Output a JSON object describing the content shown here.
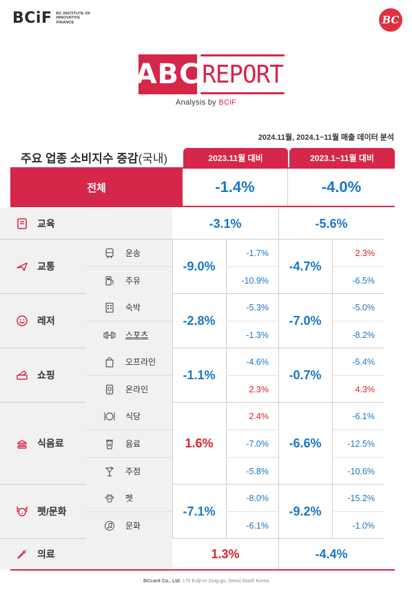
{
  "header": {
    "brand": "BCiF",
    "brand_lines": [
      "BC INSTITUTE OF",
      "INNOVATIVE",
      "FINANCE"
    ],
    "badge": "BC",
    "report_abc": "ABC",
    "report_word": "REPORT",
    "analysis_prefix": "Analysis by ",
    "analysis_brand": "BCiF"
  },
  "period": "2024.11월, 2024.1~11월 매출 데이터 분석",
  "table_title": "주요 업종 소비지수 증감",
  "table_title_suffix": "(국내)",
  "columns": [
    "2023.11월 대비",
    "2023.1~11월 대비"
  ],
  "total": {
    "label": "전체",
    "nov": "-1.4%",
    "ytd": "-4.0%"
  },
  "rows": {
    "education": {
      "label": "교육",
      "icon": "book-icon",
      "nov": "-3.1%",
      "ytd": "-5.6%"
    },
    "transport": {
      "label": "교통",
      "icon": "airplane-icon",
      "nov": "-9.0%",
      "ytd": "-4.7%",
      "subs": [
        {
          "label": "운송",
          "icon": "bus-icon",
          "nov": "-1.7%",
          "ytd": "2.3%"
        },
        {
          "label": "주유",
          "icon": "fuel-icon",
          "nov": "-10.9%",
          "ytd": "-6.5%"
        }
      ]
    },
    "leisure": {
      "label": "레저",
      "icon": "smile-icon",
      "nov": "-2.8%",
      "ytd": "-7.0%",
      "subs": [
        {
          "label": "숙박",
          "icon": "hotel-icon",
          "nov": "-5.3%",
          "ytd": "-5.0%"
        },
        {
          "label": "스포츠",
          "icon": "dumbbell-icon",
          "nov": "-1.3%",
          "ytd": "-8.2%"
        }
      ]
    },
    "shopping": {
      "label": "쇼핑",
      "icon": "card-icon",
      "nov": "-1.1%",
      "ytd": "-0.7%",
      "subs": [
        {
          "label": "오프라인",
          "icon": "shopping-bag-icon",
          "nov": "-4.6%",
          "ytd": "-5.4%"
        },
        {
          "label": "온라인",
          "icon": "online-shop-icon",
          "nov": "2.3%",
          "ytd": "4.3%"
        }
      ]
    },
    "food": {
      "label": "식음료",
      "icon": "burger-icon",
      "nov": "1.6%",
      "ytd": "-6.6%",
      "subs": [
        {
          "label": "식당",
          "icon": "plate-icon",
          "nov": "2.4%",
          "ytd": "-6.1%"
        },
        {
          "label": "음료",
          "icon": "coffee-icon",
          "nov": "-7.0%",
          "ytd": "-12.5%"
        },
        {
          "label": "주점",
          "icon": "cocktail-icon",
          "nov": "-5.8%",
          "ytd": "-10.6%"
        }
      ]
    },
    "pet_culture": {
      "label": "펫/문화",
      "icon": "dog-icon",
      "nov": "-7.1%",
      "ytd": "-9.2%",
      "subs": [
        {
          "label": "펫",
          "icon": "paw-icon",
          "nov": "-8.0%",
          "ytd": "-15.2%"
        },
        {
          "label": "문화",
          "icon": "music-icon",
          "nov": "-6.1%",
          "ytd": "-1.0%"
        }
      ]
    },
    "medical": {
      "label": "의료",
      "icon": "syringe-icon",
      "nov": "1.3%",
      "ytd": "-4.4%"
    }
  },
  "footer": {
    "company": "BCcard Co., Ltd.",
    "address": "170 Eulji-ro Jung-gu, Seoul South Korea"
  }
}
